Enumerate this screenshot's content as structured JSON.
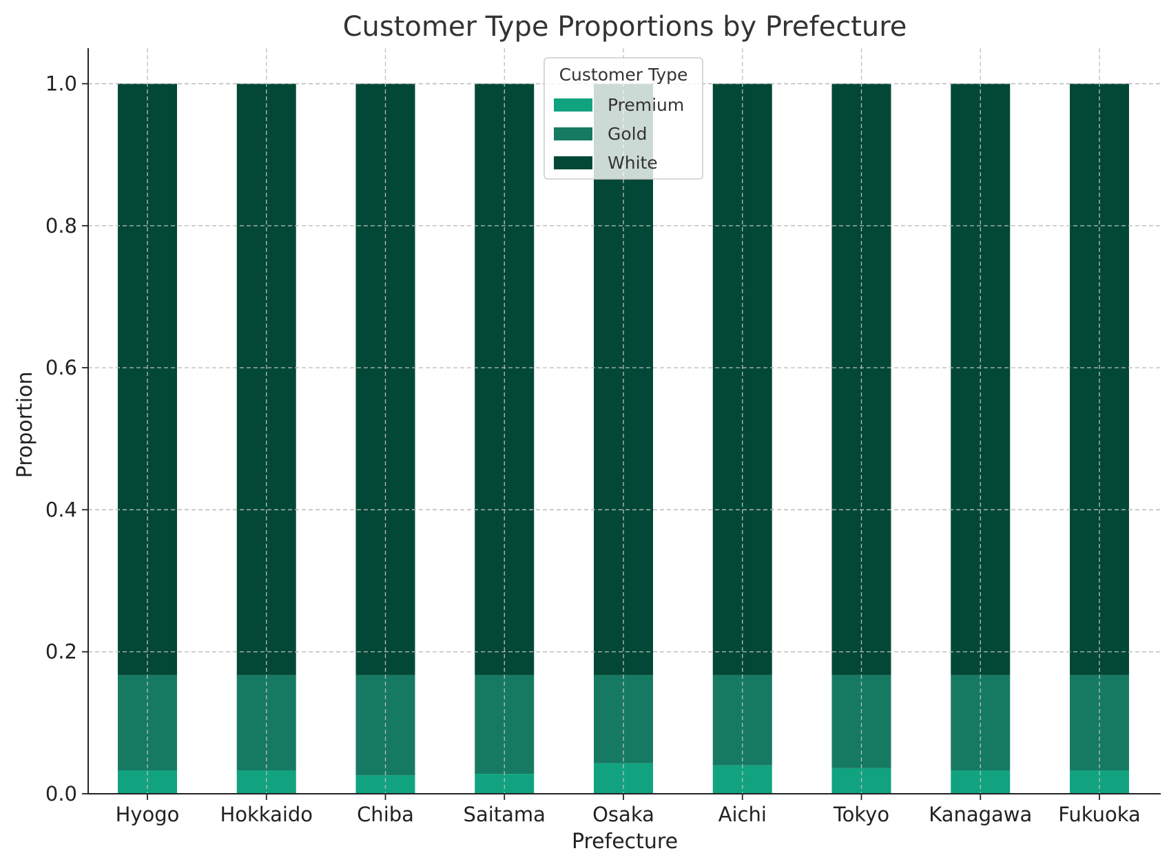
{
  "chart_data": {
    "type": "bar",
    "stacked": true,
    "title": "Customer Type Proportions by Prefecture",
    "xlabel": "Prefecture",
    "ylabel": "Proportion",
    "ylim": [
      0,
      1.05
    ],
    "yticks": [
      "0.0",
      "0.2",
      "0.4",
      "0.6",
      "0.8",
      "1.0"
    ],
    "grid": true,
    "legend": {
      "title": "Customer Type",
      "position": "top-center"
    },
    "categories": [
      "Hyogo",
      "Hokkaido",
      "Chiba",
      "Saitama",
      "Osaka",
      "Aichi",
      "Tokyo",
      "Kanagawa",
      "Fukuoka"
    ],
    "series": [
      {
        "name": "Premium",
        "color": "#11a37f",
        "values": [
          0.033,
          0.033,
          0.026,
          0.028,
          0.043,
          0.04,
          0.036,
          0.033,
          0.033
        ]
      },
      {
        "name": "Gold",
        "color": "#167a62",
        "values": [
          0.134,
          0.134,
          0.141,
          0.139,
          0.124,
          0.127,
          0.131,
          0.134,
          0.134
        ]
      },
      {
        "name": "White",
        "color": "#034836",
        "values": [
          0.833,
          0.833,
          0.833,
          0.833,
          0.833,
          0.833,
          0.833,
          0.833,
          0.833
        ]
      }
    ]
  }
}
